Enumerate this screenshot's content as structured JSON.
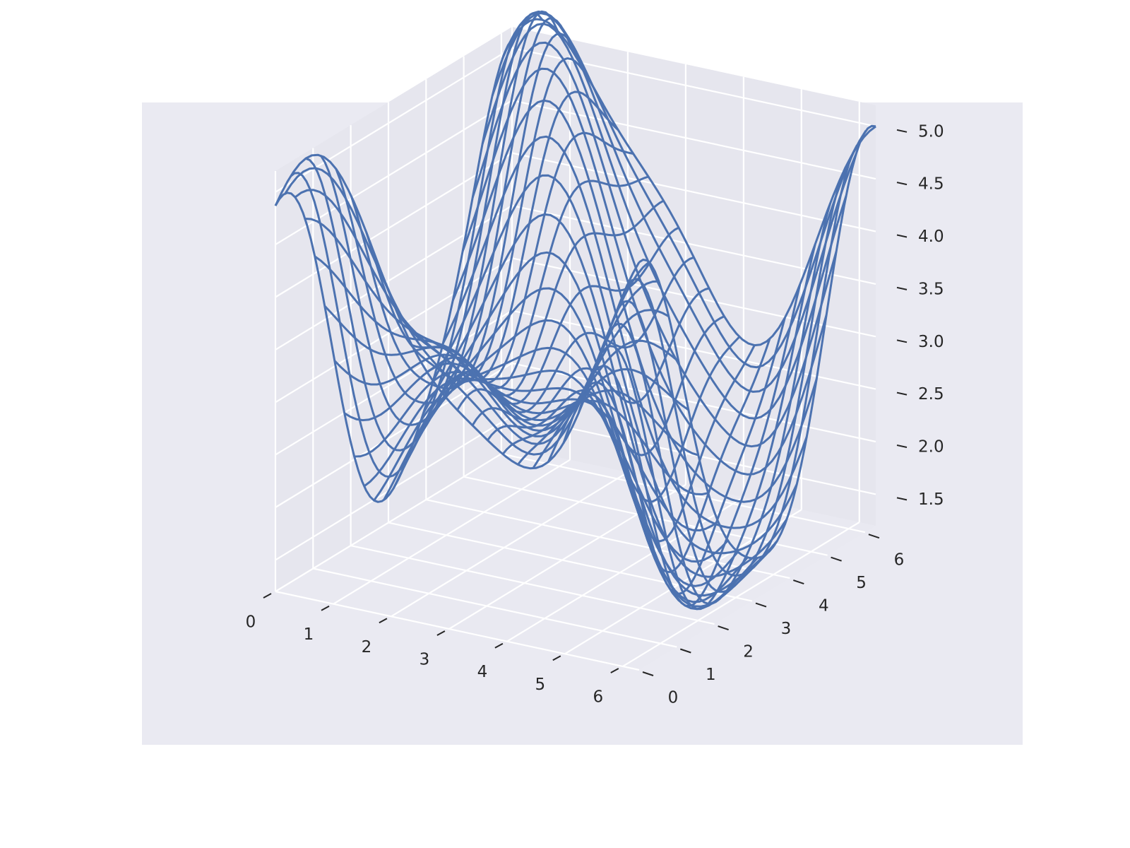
{
  "chart_data": {
    "type": "wireframe",
    "title": "",
    "xlabel": "",
    "ylabel": "",
    "zlabel": "",
    "x_ticks": [
      "0",
      "1",
      "2",
      "3",
      "4",
      "5",
      "6"
    ],
    "y_ticks": [
      "0",
      "1",
      "2",
      "3",
      "4",
      "5",
      "6"
    ],
    "z_ticks": [
      "1.5",
      "2.0",
      "2.5",
      "3.0",
      "3.5",
      "4.0",
      "4.5",
      "5.0"
    ],
    "xlim": [
      0,
      6.283
    ],
    "ylim": [
      0,
      6.283
    ],
    "zlim": [
      1.2,
      5.2
    ],
    "grid": true,
    "surface": {
      "function": "z = 3 + sin(x) + cos(y) + ... (approx)",
      "samples_x": 25,
      "samples_y": 25
    },
    "colors": {
      "wire": "#4c72b0",
      "pane": "#eaeaf2",
      "grid": "#ffffff",
      "figure_background": "#ffffff"
    }
  }
}
